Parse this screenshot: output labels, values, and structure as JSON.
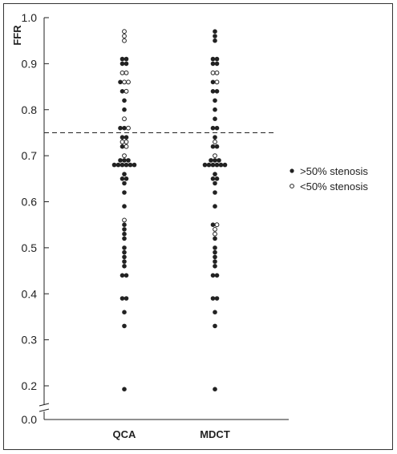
{
  "chart_data": {
    "type": "scatter",
    "title": "",
    "ylabel": "FFR",
    "xlabel": "",
    "categories": [
      "QCA",
      "MDCT"
    ],
    "y_ticks": [
      "0.0",
      "0.2",
      "0.3",
      "0.4",
      "0.5",
      "0.6",
      "0.7",
      "0.8",
      "0.9",
      "1.0"
    ],
    "y_axis_break": true,
    "ylim": [
      0.0,
      1.0
    ],
    "threshold_line": 0.75,
    "grid": false,
    "legend_position": "right",
    "series": [
      {
        "name": ">50% stenosis",
        "marker": "filled",
        "points": [
          {
            "cat": "QCA",
            "y": 0.91,
            "n": 2
          },
          {
            "cat": "QCA",
            "y": 0.9,
            "n": 2
          },
          {
            "cat": "QCA",
            "y": 0.86,
            "n": 1
          },
          {
            "cat": "QCA",
            "y": 0.84,
            "n": 1
          },
          {
            "cat": "QCA",
            "y": 0.82,
            "n": 1
          },
          {
            "cat": "QCA",
            "y": 0.8,
            "n": 1
          },
          {
            "cat": "QCA",
            "y": 0.76,
            "n": 2
          },
          {
            "cat": "QCA",
            "y": 0.74,
            "n": 2
          },
          {
            "cat": "QCA",
            "y": 0.72,
            "n": 1
          },
          {
            "cat": "QCA",
            "y": 0.69,
            "n": 3
          },
          {
            "cat": "QCA",
            "y": 0.68,
            "n": 6
          },
          {
            "cat": "QCA",
            "y": 0.66,
            "n": 1
          },
          {
            "cat": "QCA",
            "y": 0.65,
            "n": 2
          },
          {
            "cat": "QCA",
            "y": 0.64,
            "n": 1
          },
          {
            "cat": "QCA",
            "y": 0.62,
            "n": 1
          },
          {
            "cat": "QCA",
            "y": 0.59,
            "n": 1
          },
          {
            "cat": "QCA",
            "y": 0.55,
            "n": 1
          },
          {
            "cat": "QCA",
            "y": 0.54,
            "n": 1
          },
          {
            "cat": "QCA",
            "y": 0.53,
            "n": 1
          },
          {
            "cat": "QCA",
            "y": 0.52,
            "n": 1
          },
          {
            "cat": "QCA",
            "y": 0.5,
            "n": 1
          },
          {
            "cat": "QCA",
            "y": 0.49,
            "n": 1
          },
          {
            "cat": "QCA",
            "y": 0.48,
            "n": 1
          },
          {
            "cat": "QCA",
            "y": 0.47,
            "n": 1
          },
          {
            "cat": "QCA",
            "y": 0.46,
            "n": 1
          },
          {
            "cat": "QCA",
            "y": 0.44,
            "n": 2
          },
          {
            "cat": "QCA",
            "y": 0.39,
            "n": 2
          },
          {
            "cat": "QCA",
            "y": 0.36,
            "n": 1
          },
          {
            "cat": "QCA",
            "y": 0.33,
            "n": 1
          },
          {
            "cat": "QCA",
            "y": 0.17,
            "n": 1
          },
          {
            "cat": "MDCT",
            "y": 0.97,
            "n": 1
          },
          {
            "cat": "MDCT",
            "y": 0.96,
            "n": 1
          },
          {
            "cat": "MDCT",
            "y": 0.95,
            "n": 1
          },
          {
            "cat": "MDCT",
            "y": 0.91,
            "n": 2
          },
          {
            "cat": "MDCT",
            "y": 0.9,
            "n": 2
          },
          {
            "cat": "MDCT",
            "y": 0.86,
            "n": 1
          },
          {
            "cat": "MDCT",
            "y": 0.84,
            "n": 2
          },
          {
            "cat": "MDCT",
            "y": 0.82,
            "n": 1
          },
          {
            "cat": "MDCT",
            "y": 0.8,
            "n": 1
          },
          {
            "cat": "MDCT",
            "y": 0.78,
            "n": 1
          },
          {
            "cat": "MDCT",
            "y": 0.76,
            "n": 2
          },
          {
            "cat": "MDCT",
            "y": 0.74,
            "n": 1
          },
          {
            "cat": "MDCT",
            "y": 0.72,
            "n": 2
          },
          {
            "cat": "MDCT",
            "y": 0.69,
            "n": 3
          },
          {
            "cat": "MDCT",
            "y": 0.68,
            "n": 6
          },
          {
            "cat": "MDCT",
            "y": 0.66,
            "n": 1
          },
          {
            "cat": "MDCT",
            "y": 0.65,
            "n": 2
          },
          {
            "cat": "MDCT",
            "y": 0.64,
            "n": 1
          },
          {
            "cat": "MDCT",
            "y": 0.62,
            "n": 1
          },
          {
            "cat": "MDCT",
            "y": 0.59,
            "n": 1
          },
          {
            "cat": "MDCT",
            "y": 0.55,
            "n": 1
          },
          {
            "cat": "MDCT",
            "y": 0.52,
            "n": 1
          },
          {
            "cat": "MDCT",
            "y": 0.5,
            "n": 1
          },
          {
            "cat": "MDCT",
            "y": 0.49,
            "n": 1
          },
          {
            "cat": "MDCT",
            "y": 0.48,
            "n": 1
          },
          {
            "cat": "MDCT",
            "y": 0.47,
            "n": 1
          },
          {
            "cat": "MDCT",
            "y": 0.46,
            "n": 1
          },
          {
            "cat": "MDCT",
            "y": 0.44,
            "n": 2
          },
          {
            "cat": "MDCT",
            "y": 0.39,
            "n": 2
          },
          {
            "cat": "MDCT",
            "y": 0.36,
            "n": 1
          },
          {
            "cat": "MDCT",
            "y": 0.33,
            "n": 1
          },
          {
            "cat": "MDCT",
            "y": 0.17,
            "n": 1
          }
        ]
      },
      {
        "name": "<50% stenosis",
        "marker": "open",
        "points": [
          {
            "cat": "QCA",
            "y": 0.97,
            "n": 1
          },
          {
            "cat": "QCA",
            "y": 0.96,
            "n": 1
          },
          {
            "cat": "QCA",
            "y": 0.95,
            "n": 1
          },
          {
            "cat": "QCA",
            "y": 0.88,
            "n": 2
          },
          {
            "cat": "QCA",
            "y": 0.86,
            "n": 2
          },
          {
            "cat": "QCA",
            "y": 0.84,
            "n": 1
          },
          {
            "cat": "QCA",
            "y": 0.78,
            "n": 1
          },
          {
            "cat": "QCA",
            "y": 0.76,
            "n": 1
          },
          {
            "cat": "QCA",
            "y": 0.73,
            "n": 2
          },
          {
            "cat": "QCA",
            "y": 0.72,
            "n": 1
          },
          {
            "cat": "QCA",
            "y": 0.7,
            "n": 1
          },
          {
            "cat": "QCA",
            "y": 0.56,
            "n": 1
          },
          {
            "cat": "MDCT",
            "y": 0.88,
            "n": 2
          },
          {
            "cat": "MDCT",
            "y": 0.86,
            "n": 1
          },
          {
            "cat": "MDCT",
            "y": 0.73,
            "n": 1
          },
          {
            "cat": "MDCT",
            "y": 0.7,
            "n": 1
          },
          {
            "cat": "MDCT",
            "y": 0.55,
            "n": 1
          },
          {
            "cat": "MDCT",
            "y": 0.54,
            "n": 1
          },
          {
            "cat": "MDCT",
            "y": 0.53,
            "n": 1
          }
        ]
      }
    ]
  }
}
